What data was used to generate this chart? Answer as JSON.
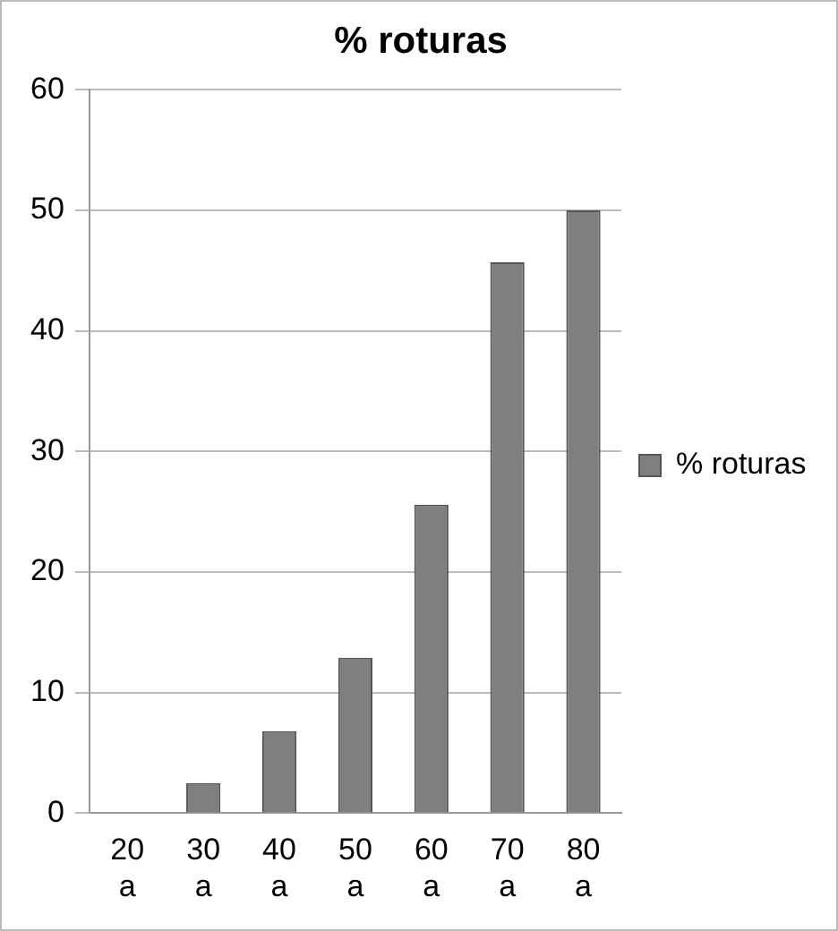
{
  "chart_data": {
    "type": "bar",
    "title": "% roturas",
    "categories": [
      "20 a",
      "30 a",
      "40 a",
      "50 a",
      "60 a",
      "70 a",
      "80 a"
    ],
    "series": [
      {
        "name": "% roturas",
        "color": "#7f7f7f",
        "values": [
          0,
          2.5,
          6.8,
          12.9,
          25.6,
          45.7,
          50
        ]
      }
    ],
    "ylim": [
      0,
      60
    ],
    "yticks": [
      0,
      10,
      20,
      30,
      40,
      50,
      60
    ],
    "grid": "y",
    "legend": "right"
  }
}
